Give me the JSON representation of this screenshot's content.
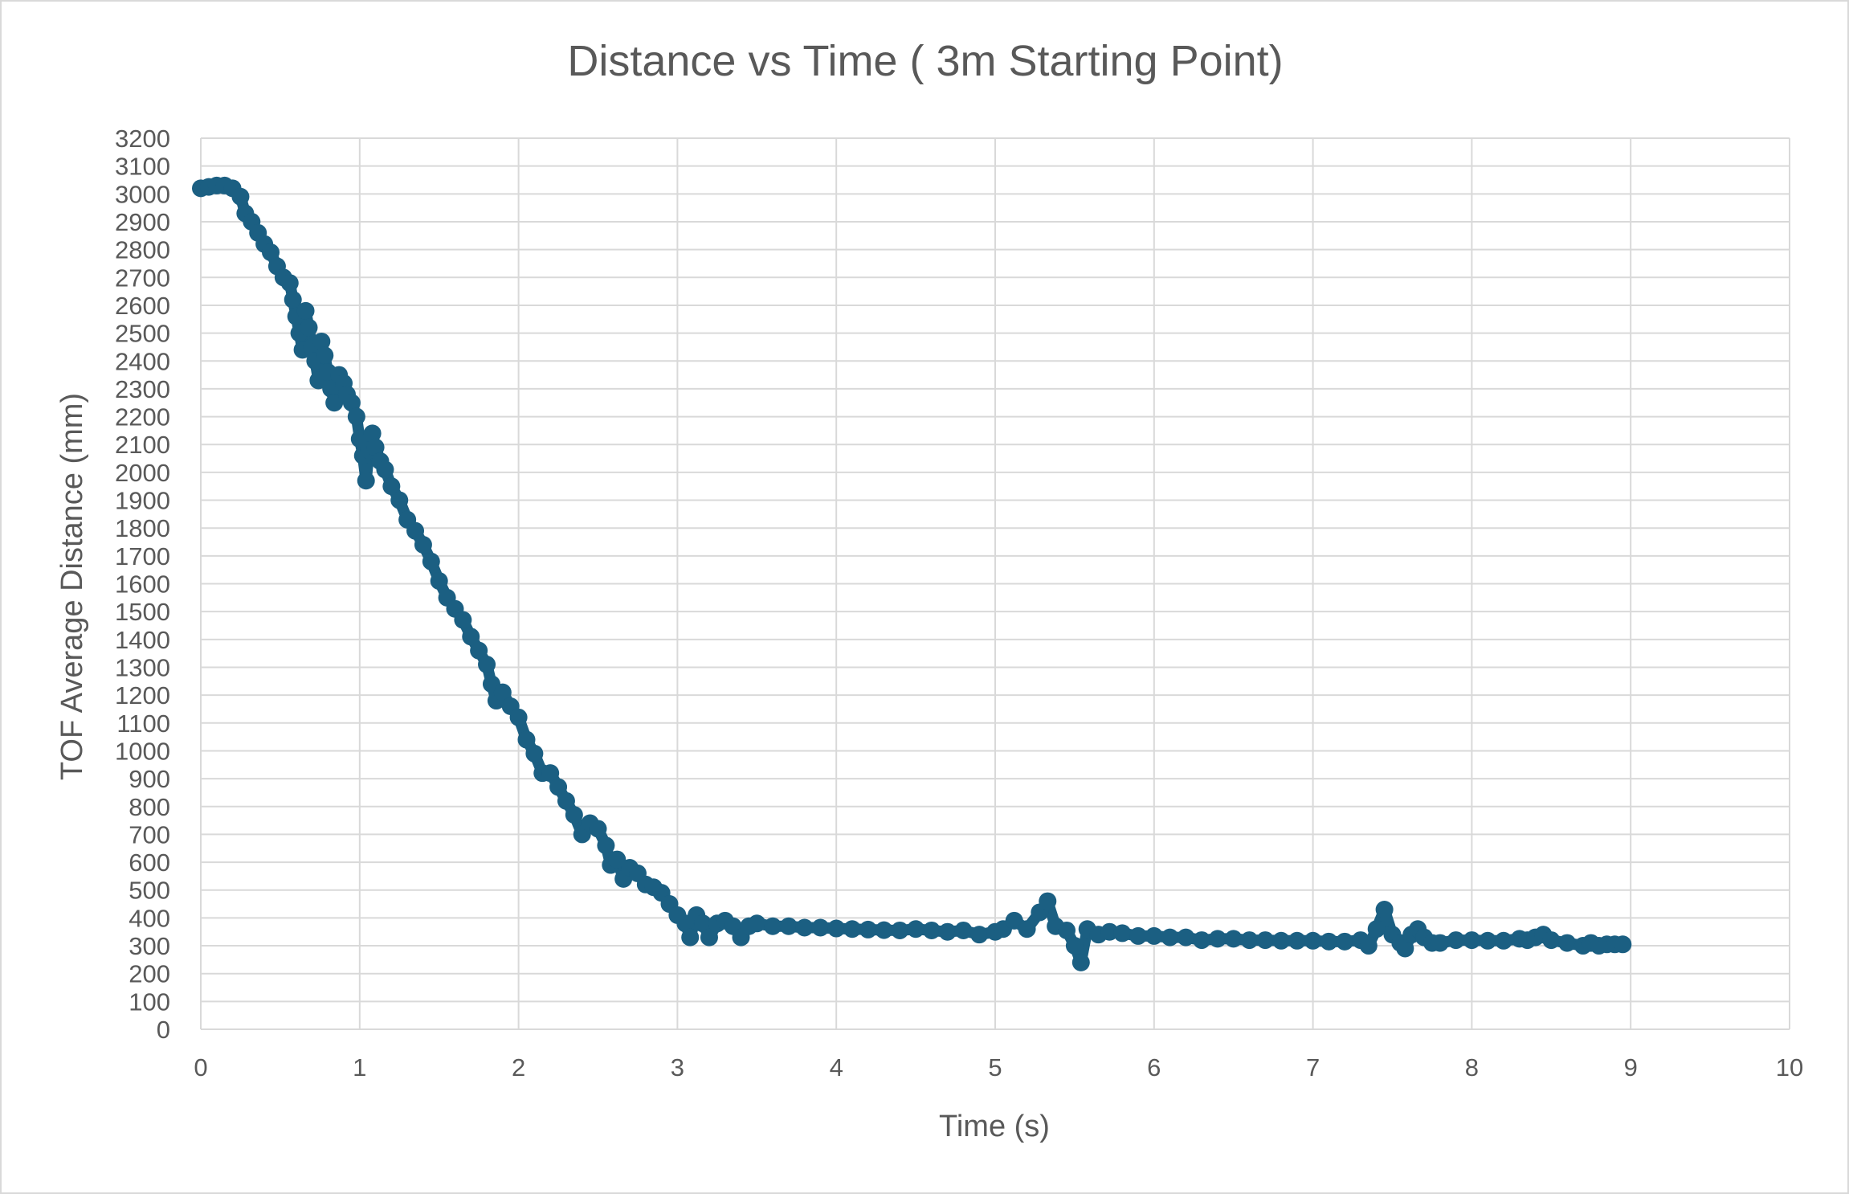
{
  "chart_data": {
    "type": "scatter",
    "title": "Distance vs Time ( 3m Starting Point)",
    "xlabel": "Time (s)",
    "ylabel": "TOF Average Distance (mm)",
    "xlim": [
      0,
      10
    ],
    "ylim": [
      0,
      3200
    ],
    "xticks": [
      0,
      1,
      2,
      3,
      4,
      5,
      6,
      7,
      8,
      9,
      10
    ],
    "yticks": [
      0,
      100,
      200,
      300,
      400,
      500,
      600,
      700,
      800,
      900,
      1000,
      1100,
      1200,
      1300,
      1400,
      1500,
      1600,
      1700,
      1800,
      1900,
      2000,
      2100,
      2200,
      2300,
      2400,
      2500,
      2600,
      2700,
      2800,
      2900,
      3000,
      3100,
      3200
    ],
    "grid": true,
    "legend": "none",
    "series_color": "#1b5f82",
    "series": [
      {
        "points": [
          [
            0.0,
            3020
          ],
          [
            0.05,
            3025
          ],
          [
            0.1,
            3030
          ],
          [
            0.15,
            3030
          ],
          [
            0.2,
            3020
          ],
          [
            0.25,
            2990
          ],
          [
            0.28,
            2930
          ],
          [
            0.32,
            2900
          ],
          [
            0.36,
            2860
          ],
          [
            0.4,
            2820
          ],
          [
            0.44,
            2790
          ],
          [
            0.48,
            2740
          ],
          [
            0.52,
            2700
          ],
          [
            0.56,
            2680
          ],
          [
            0.58,
            2620
          ],
          [
            0.6,
            2560
          ],
          [
            0.62,
            2500
          ],
          [
            0.64,
            2440
          ],
          [
            0.66,
            2580
          ],
          [
            0.68,
            2520
          ],
          [
            0.7,
            2450
          ],
          [
            0.72,
            2400
          ],
          [
            0.74,
            2330
          ],
          [
            0.76,
            2470
          ],
          [
            0.78,
            2420
          ],
          [
            0.8,
            2360
          ],
          [
            0.82,
            2300
          ],
          [
            0.84,
            2250
          ],
          [
            0.87,
            2350
          ],
          [
            0.9,
            2320
          ],
          [
            0.92,
            2280
          ],
          [
            0.95,
            2250
          ],
          [
            0.98,
            2200
          ],
          [
            1.0,
            2120
          ],
          [
            1.02,
            2060
          ],
          [
            1.04,
            1970
          ],
          [
            1.06,
            2080
          ],
          [
            1.08,
            2140
          ],
          [
            1.1,
            2090
          ],
          [
            1.13,
            2040
          ],
          [
            1.16,
            2010
          ],
          [
            1.2,
            1950
          ],
          [
            1.25,
            1900
          ],
          [
            1.3,
            1830
          ],
          [
            1.35,
            1790
          ],
          [
            1.4,
            1740
          ],
          [
            1.45,
            1680
          ],
          [
            1.5,
            1610
          ],
          [
            1.55,
            1550
          ],
          [
            1.6,
            1510
          ],
          [
            1.65,
            1470
          ],
          [
            1.7,
            1410
          ],
          [
            1.75,
            1360
          ],
          [
            1.8,
            1310
          ],
          [
            1.83,
            1240
          ],
          [
            1.86,
            1180
          ],
          [
            1.9,
            1210
          ],
          [
            1.95,
            1160
          ],
          [
            2.0,
            1120
          ],
          [
            2.05,
            1040
          ],
          [
            2.1,
            990
          ],
          [
            2.15,
            920
          ],
          [
            2.2,
            920
          ],
          [
            2.25,
            870
          ],
          [
            2.3,
            820
          ],
          [
            2.35,
            770
          ],
          [
            2.4,
            700
          ],
          [
            2.45,
            740
          ],
          [
            2.5,
            720
          ],
          [
            2.55,
            660
          ],
          [
            2.58,
            590
          ],
          [
            2.62,
            610
          ],
          [
            2.66,
            540
          ],
          [
            2.7,
            580
          ],
          [
            2.75,
            560
          ],
          [
            2.8,
            520
          ],
          [
            2.85,
            510
          ],
          [
            2.9,
            490
          ],
          [
            2.95,
            450
          ],
          [
            3.0,
            410
          ],
          [
            3.05,
            380
          ],
          [
            3.08,
            330
          ],
          [
            3.12,
            410
          ],
          [
            3.16,
            380
          ],
          [
            3.2,
            330
          ],
          [
            3.25,
            380
          ],
          [
            3.3,
            390
          ],
          [
            3.35,
            370
          ],
          [
            3.4,
            330
          ],
          [
            3.45,
            370
          ],
          [
            3.5,
            380
          ],
          [
            3.6,
            370
          ],
          [
            3.7,
            370
          ],
          [
            3.8,
            365
          ],
          [
            3.9,
            365
          ],
          [
            4.0,
            362
          ],
          [
            4.1,
            360
          ],
          [
            4.2,
            358
          ],
          [
            4.3,
            356
          ],
          [
            4.4,
            355
          ],
          [
            4.5,
            360
          ],
          [
            4.6,
            355
          ],
          [
            4.7,
            350
          ],
          [
            4.8,
            355
          ],
          [
            4.9,
            340
          ],
          [
            5.0,
            350
          ],
          [
            5.05,
            360
          ],
          [
            5.12,
            390
          ],
          [
            5.2,
            360
          ],
          [
            5.28,
            420
          ],
          [
            5.33,
            460
          ],
          [
            5.38,
            370
          ],
          [
            5.45,
            355
          ],
          [
            5.5,
            300
          ],
          [
            5.54,
            240
          ],
          [
            5.58,
            360
          ],
          [
            5.65,
            340
          ],
          [
            5.72,
            350
          ],
          [
            5.8,
            345
          ],
          [
            5.9,
            335
          ],
          [
            6.0,
            335
          ],
          [
            6.1,
            330
          ],
          [
            6.2,
            330
          ],
          [
            6.3,
            320
          ],
          [
            6.4,
            325
          ],
          [
            6.5,
            325
          ],
          [
            6.6,
            320
          ],
          [
            6.7,
            320
          ],
          [
            6.8,
            318
          ],
          [
            6.9,
            318
          ],
          [
            7.0,
            318
          ],
          [
            7.1,
            315
          ],
          [
            7.2,
            315
          ],
          [
            7.3,
            320
          ],
          [
            7.35,
            300
          ],
          [
            7.4,
            360
          ],
          [
            7.45,
            430
          ],
          [
            7.5,
            340
          ],
          [
            7.55,
            310
          ],
          [
            7.58,
            290
          ],
          [
            7.62,
            340
          ],
          [
            7.66,
            360
          ],
          [
            7.7,
            330
          ],
          [
            7.75,
            310
          ],
          [
            7.8,
            310
          ],
          [
            7.9,
            320
          ],
          [
            8.0,
            320
          ],
          [
            8.1,
            318
          ],
          [
            8.2,
            318
          ],
          [
            8.3,
            325
          ],
          [
            8.35,
            320
          ],
          [
            8.4,
            330
          ],
          [
            8.45,
            340
          ],
          [
            8.5,
            320
          ],
          [
            8.6,
            310
          ],
          [
            8.7,
            300
          ],
          [
            8.75,
            310
          ],
          [
            8.8,
            300
          ],
          [
            8.85,
            305
          ],
          [
            8.9,
            305
          ],
          [
            8.95,
            305
          ]
        ]
      }
    ]
  }
}
